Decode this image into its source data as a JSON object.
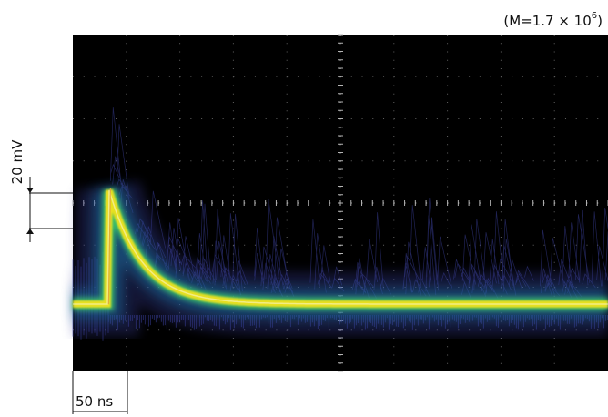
{
  "header": {
    "gain_prefix": "(M=1.7 × 10",
    "gain_exponent": "6",
    "gain_suffix": ")"
  },
  "chart_data": {
    "type": "line",
    "description_kind": "oscilloscope persistence display",
    "vertical_scale_label": "20 mV",
    "horizontal_scale_label": "50 ns",
    "grid": true,
    "grid_divisions": {
      "x": 10,
      "y": 8
    },
    "colors": {
      "screen": "#000000",
      "grid": "#7a7a7a",
      "graticule_axis": "#b4b4b4",
      "trace_hot": "#f2e21a",
      "trace_mid": "#3cc86a",
      "trace_halo": "#1f6ea0",
      "trace_noise": "#3a3f9a"
    }
  }
}
